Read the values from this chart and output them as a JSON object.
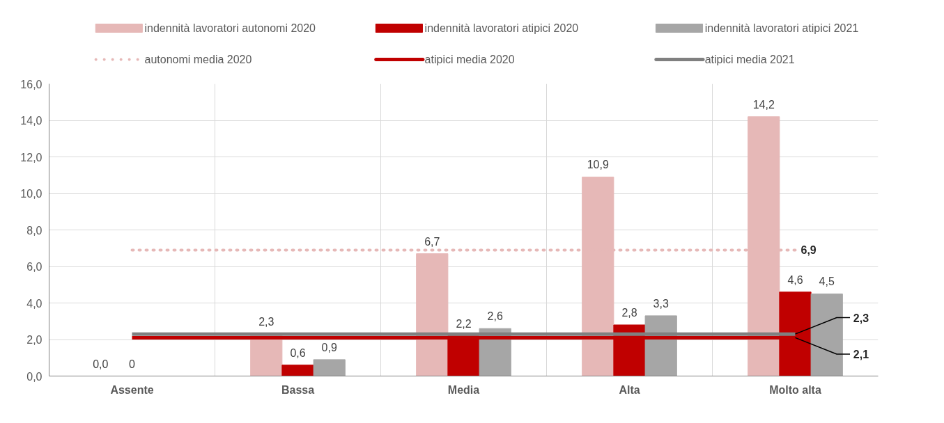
{
  "chart_data": {
    "type": "bar",
    "categories": [
      "Assente",
      "Bassa",
      "Media",
      "Alta",
      "Molto alta"
    ],
    "series": [
      {
        "name": "indennità lavoratori autonomi 2020",
        "color": "#e6b8b7",
        "values": [
          0,
          2.3,
          6.7,
          10.9,
          14.2
        ],
        "value_labels": [
          "0,0",
          "2,3",
          "6,7",
          "10,9",
          "14,2"
        ]
      },
      {
        "name": "indennità lavoratori atipici 2020",
        "color": "#c00000",
        "values": [
          0,
          0.6,
          2.2,
          2.8,
          4.6
        ],
        "value_labels": [
          "0",
          "0,6",
          "2,2",
          "2,8",
          "4,6"
        ]
      },
      {
        "name": "indennità lavoratori atipici 2021",
        "color": "#a6a6a6",
        "values": [
          0,
          0.9,
          2.6,
          3.3,
          4.5
        ],
        "value_labels": [
          null,
          "0,9",
          "2,6",
          "3,3",
          "4,5"
        ]
      },
      {
        "name": "autonomi media 2020",
        "type": "line",
        "line_style": "dotted",
        "color": "#e6b8b7",
        "values": [
          6.9,
          6.9,
          6.9,
          6.9,
          6.9
        ],
        "value_labels": [
          null,
          null,
          null,
          null,
          "6,9"
        ]
      },
      {
        "name": "atipici media 2020",
        "type": "line",
        "line_style": "solid",
        "color": "#c00000",
        "values": [
          2.1,
          2.1,
          2.1,
          2.1,
          2.1
        ],
        "value_labels": [
          null,
          null,
          null,
          null,
          "2,1"
        ]
      },
      {
        "name": "atipici media 2021",
        "type": "line",
        "line_style": "solid",
        "color": "#808080",
        "values": [
          2.3,
          2.3,
          2.3,
          2.3,
          2.3
        ],
        "value_labels": [
          null,
          null,
          null,
          null,
          "2,3"
        ]
      }
    ],
    "ylim": [
      0,
      16
    ],
    "yticks": [
      {
        "value": 0,
        "label": "0,0"
      },
      {
        "value": 2,
        "label": "2,0"
      },
      {
        "value": 4,
        "label": "4,0"
      },
      {
        "value": 6,
        "label": "6,0"
      },
      {
        "value": 8,
        "label": "8,0"
      },
      {
        "value": 10,
        "label": "10,0"
      },
      {
        "value": 12,
        "label": "12,0"
      },
      {
        "value": 14,
        "label": "14,0"
      },
      {
        "value": 16,
        "label": "16,0"
      }
    ],
    "grid": true,
    "legend": "top"
  }
}
